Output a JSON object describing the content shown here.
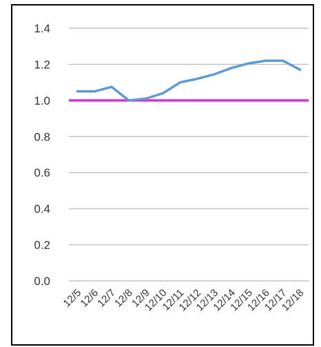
{
  "chart_data": {
    "type": "line",
    "title": "",
    "xlabel": "",
    "ylabel": "",
    "categories": [
      "12/5",
      "12/6",
      "12/7",
      "12/8",
      "12/9",
      "12/10",
      "12/11",
      "12/12",
      "12/13",
      "12/14",
      "12/15",
      "12/16",
      "12/17",
      "12/18"
    ],
    "ylim": [
      0,
      1.4
    ],
    "yticks": [
      "0.0",
      "0.2",
      "0.4",
      "0.6",
      "0.8",
      "1.0",
      "1.2",
      "1.4"
    ],
    "grid": true,
    "legend": "none",
    "series": [
      {
        "values": [
          1.05,
          1.05,
          1.075,
          1.0,
          1.01,
          1.04,
          1.1,
          1.12,
          1.145,
          1.18,
          1.205,
          1.22,
          1.22,
          1.17
        ],
        "color": "#5b9bd5"
      }
    ],
    "reference_line": {
      "value": 1.0,
      "color": "#e22be0"
    },
    "colors": {
      "gridline": "#b8b8b8",
      "frame": "#000000"
    }
  }
}
